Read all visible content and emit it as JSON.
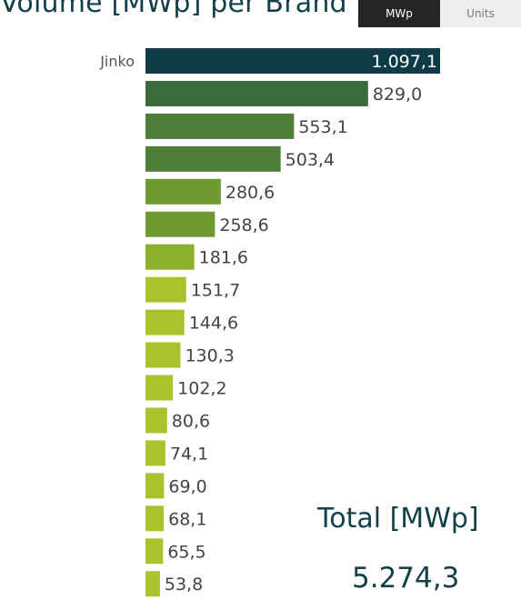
{
  "header": {
    "title": "Volume [MWp] per Brand"
  },
  "toggle": {
    "mwp_label": "MWp",
    "units_label": "Units",
    "selected": "MWp"
  },
  "colors": {
    "bar_top": "#0d3b47",
    "bar_dark_green": "#3a6b3c",
    "bar_mid_green": "#6e9a31",
    "bar_light_green": "#a9c22d",
    "total_text": "#12414a"
  },
  "chart_data": {
    "type": "bar",
    "orientation": "horizontal",
    "categories": [
      "Jinko",
      "",
      "",
      "",
      "",
      "",
      "",
      "",
      "",
      "",
      "",
      "",
      "",
      "",
      "",
      "",
      ""
    ],
    "values": [
      1097.1,
      829.0,
      553.1,
      503.4,
      280.6,
      258.6,
      181.6,
      151.7,
      144.6,
      130.3,
      102.2,
      80.6,
      74.1,
      69.0,
      68.1,
      65.5,
      53.8
    ],
    "value_labels": [
      "1.097,1",
      "829,0",
      "553,1",
      "503,4",
      "280,6",
      "258,6",
      "181,6",
      "151,7",
      "144,6",
      "130,3",
      "102,2",
      "80,6",
      "74,1",
      "69,0",
      "68,1",
      "65,5",
      "53,8"
    ],
    "bar_colors": [
      "#0d3b47",
      "#3a6b3c",
      "#4e7e38",
      "#4e7e38",
      "#6e9a31",
      "#6e9a31",
      "#8db02c",
      "#a9c22d",
      "#a9c22d",
      "#a9c22d",
      "#a9c22d",
      "#a9c22d",
      "#a9c22d",
      "#a9c22d",
      "#a9c22d",
      "#a9c22d",
      "#a9c22d"
    ],
    "title": "Volume [MWp] per Brand",
    "xlabel": "",
    "ylabel": "",
    "xlim": [
      0,
      1097.1
    ],
    "grid": false,
    "legend": "none"
  },
  "total": {
    "label": "Total [MWp]",
    "value": "5.274,3"
  }
}
